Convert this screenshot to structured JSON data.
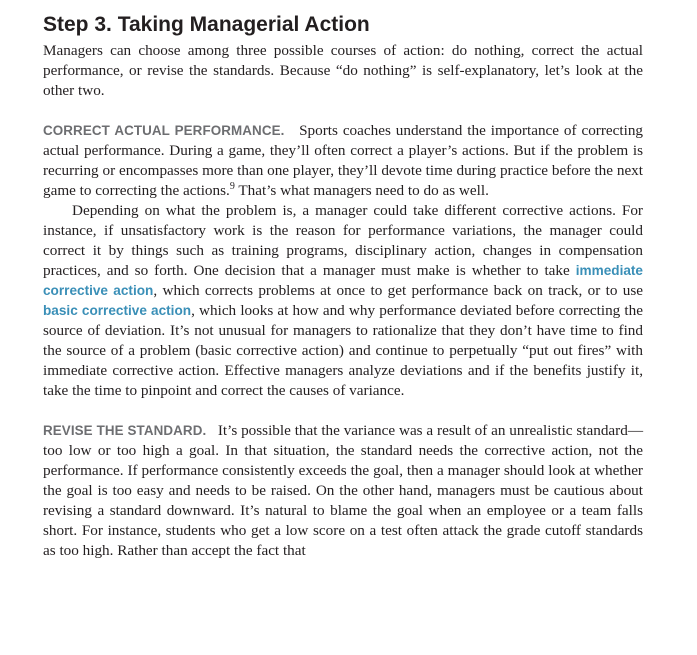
{
  "section": {
    "title": "Step 3. Taking Managerial Action",
    "intro": "Managers can choose among three possible courses of action: do nothing, correct the ac­tual performance, or revise the standards. Because “do nothing” is self-explanatory, let’s look at the other two."
  },
  "correct_actual": {
    "heading": "CORRECT ACTUAL PERFORMANCE.",
    "p1_text": "Sports coaches understand the importance of correcting actual performance. During a game, they’ll often correct a player’s actions. But if the problem is recurring or encompasses more than one player, they’ll devote time during practice before the next game to correcting the actions.",
    "p1_footnote": "9",
    "p1_tail": "That’s what managers need to do as well.",
    "p2_a": "Depending on what the problem is, a manager could take different corrective actions. For instance, if unsatisfactory work is the reason for performance variations, the manager could correct it by things such as training programs, disciplinary action, changes in com­pensation practices, and so forth. One decision that a manager must make is whether to take",
    "term_immediate": "immediate corrective action",
    "p2_b": ", which corrects problems at once to get performance back on track, or to use",
    "term_basic": "basic corrective action",
    "p2_c": ", which looks at how and why performance deviated before correcting the source of deviation. It’s not unusual for managers to rational­ize that they don’t have time to find the source of a problem (basic corrective action) and continue to perpetually “put out fires” with immediate corrective action. Effective managers analyze deviations and if the benefits justify it, take the time to pinpoint and correct the causes of variance."
  },
  "revise_standard": {
    "heading": "REVISE THE STANDARD.",
    "text": "It’s possible that the variance was a result of an unrealistic standard—too low or too high a goal. In that situation, the standard needs the corrective action, not the performance. If performance consistently exceeds the goal, then a manager should look at whether the goal is too easy and needs to be raised. On the other hand, managers must be cautious about revising a standard downward. It’s natural to blame the goal when an employee or a team falls short. For instance, students who get a low score on a test often attack the grade cutoff standards as too high. Rather than accept the fact that"
  }
}
